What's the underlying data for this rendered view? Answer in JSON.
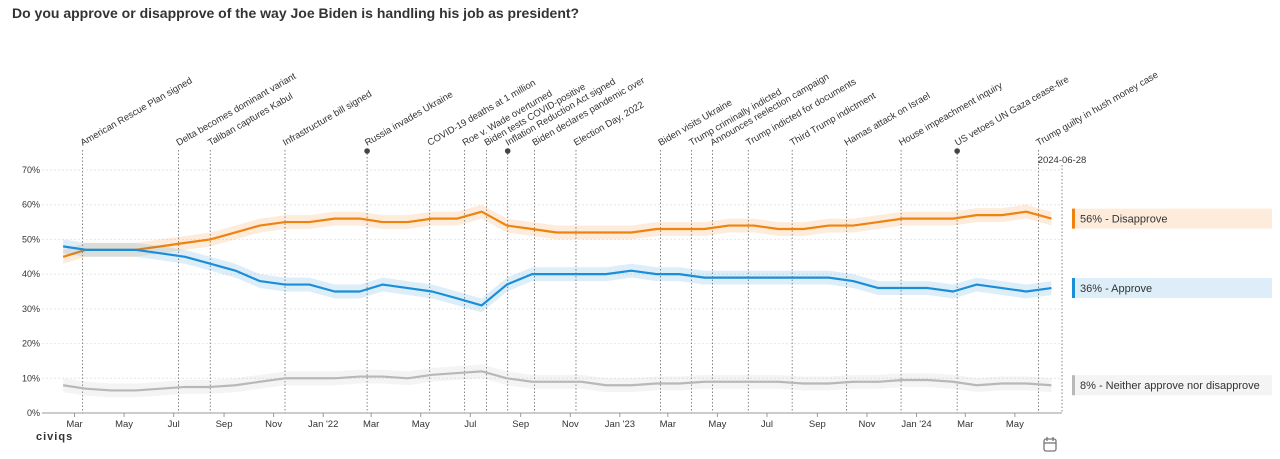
{
  "chart_data": {
    "type": "line",
    "title": "Do you approve or disapprove of the way Joe Biden is handling his job as president?",
    "logo": "civiqs",
    "x": [
      "2021-02",
      "2021-03",
      "2021-04",
      "2021-05",
      "2021-06",
      "2021-07",
      "2021-08",
      "2021-09",
      "2021-10",
      "2021-11",
      "2021-12",
      "2022-01",
      "2022-02",
      "2022-03",
      "2022-04",
      "2022-05",
      "2022-06",
      "2022-07",
      "2022-08",
      "2022-09",
      "2022-10",
      "2022-11",
      "2022-12",
      "2023-01",
      "2023-02",
      "2023-03",
      "2023-04",
      "2023-05",
      "2023-06",
      "2023-07",
      "2023-08",
      "2023-09",
      "2023-10",
      "2023-11",
      "2023-12",
      "2024-01",
      "2024-02",
      "2024-03",
      "2024-04",
      "2024-05",
      "2024-06"
    ],
    "series": [
      {
        "name": "Disapprove",
        "end_label": "56% - Disapprove",
        "color": "#f0820f",
        "values": [
          45,
          47,
          47,
          47,
          48,
          49,
          50,
          52,
          54,
          55,
          55,
          56,
          56,
          55,
          55,
          56,
          56,
          58,
          54,
          53,
          52,
          52,
          52,
          52,
          53,
          53,
          53,
          54,
          54,
          53,
          53,
          54,
          54,
          55,
          56,
          56,
          56,
          57,
          57,
          58,
          56
        ]
      },
      {
        "name": "Approve",
        "end_label": "36% - Approve",
        "color": "#1b8ed8",
        "values": [
          48,
          47,
          47,
          47,
          46,
          45,
          43,
          41,
          38,
          37,
          37,
          35,
          35,
          37,
          36,
          35,
          33,
          31,
          37,
          40,
          40,
          40,
          40,
          41,
          40,
          40,
          39,
          39,
          39,
          39,
          39,
          39,
          38,
          36,
          36,
          36,
          35,
          37,
          36,
          35,
          36
        ]
      },
      {
        "name": "Neither approve nor disapprove",
        "end_label": "8% - Neither approve nor disapprove",
        "color": "#b8b8b8",
        "values": [
          8,
          7,
          6.5,
          6.5,
          7,
          7.5,
          7.5,
          8,
          9,
          10,
          10,
          10,
          10.5,
          10.5,
          10,
          11,
          11.5,
          12,
          10,
          9,
          9,
          9,
          8,
          8,
          8.5,
          8.5,
          9,
          9,
          9,
          9,
          8.5,
          8.5,
          9,
          9,
          9.5,
          9.5,
          9,
          8,
          8.5,
          8.5,
          8
        ]
      }
    ],
    "band": 2,
    "xlim": [
      "2021-01-20",
      "2024-06-28"
    ],
    "end_date_label": "2024-06-28",
    "xticks": [
      {
        "value": "2021-03",
        "label": "Mar"
      },
      {
        "value": "2021-05",
        "label": "May"
      },
      {
        "value": "2021-07",
        "label": "Jul"
      },
      {
        "value": "2021-09",
        "label": "Sep"
      },
      {
        "value": "2021-11",
        "label": "Nov"
      },
      {
        "value": "2022-01",
        "label": "Jan '22"
      },
      {
        "value": "2022-03",
        "label": "Mar"
      },
      {
        "value": "2022-05",
        "label": "May"
      },
      {
        "value": "2022-07",
        "label": "Jul"
      },
      {
        "value": "2022-09",
        "label": "Sep"
      },
      {
        "value": "2022-11",
        "label": "Nov"
      },
      {
        "value": "2023-01",
        "label": "Jan '23"
      },
      {
        "value": "2023-03",
        "label": "Mar"
      },
      {
        "value": "2023-05",
        "label": "May"
      },
      {
        "value": "2023-07",
        "label": "Jul"
      },
      {
        "value": "2023-09",
        "label": "Sep"
      },
      {
        "value": "2023-11",
        "label": "Nov"
      },
      {
        "value": "2024-01",
        "label": "Jan '24"
      },
      {
        "value": "2024-03",
        "label": "Mar"
      },
      {
        "value": "2024-05",
        "label": "May"
      }
    ],
    "ylim": [
      0,
      70
    ],
    "yticks": [
      {
        "value": 0,
        "label": "0%"
      },
      {
        "value": 10,
        "label": "10%"
      },
      {
        "value": 20,
        "label": "20%"
      },
      {
        "value": 30,
        "label": "30%"
      },
      {
        "value": 40,
        "label": "40%"
      },
      {
        "value": 50,
        "label": "50%"
      },
      {
        "value": 60,
        "label": "60%"
      },
      {
        "value": 70,
        "label": "70%"
      }
    ],
    "grid": true,
    "annotations": [
      {
        "label": "American Rescue Plan signed",
        "date": "2021-03-11"
      },
      {
        "label": "Delta becomes dominant variant",
        "date": "2021-07-07"
      },
      {
        "label": "Taliban captures Kabul",
        "date": "2021-08-15"
      },
      {
        "label": "Infrastructure bill signed",
        "date": "2021-11-15"
      },
      {
        "label": "Russia invades Ukraine",
        "date": "2022-02-24",
        "dot": true
      },
      {
        "label": "COVID-19 deaths at 1 million",
        "date": "2022-05-12"
      },
      {
        "label": "Roe v. Wade overturned",
        "date": "2022-06-24"
      },
      {
        "label": "Biden tests COVID-positive",
        "date": "2022-07-21"
      },
      {
        "label": "Inflation Reduction Act signed",
        "date": "2022-08-16",
        "dot": true
      },
      {
        "label": "Biden declares pandemic over",
        "date": "2022-09-18"
      },
      {
        "label": "Election Day, 2022",
        "date": "2022-11-08"
      },
      {
        "label": "Biden visits Ukraine",
        "date": "2023-02-20"
      },
      {
        "label": "Trump criminally indicted",
        "date": "2023-03-30"
      },
      {
        "label": "Announces reelection campaign",
        "date": "2023-04-25"
      },
      {
        "label": "Trump indicted for documents",
        "date": "2023-06-08"
      },
      {
        "label": "Third Trump indictment",
        "date": "2023-08-01"
      },
      {
        "label": "Hamas attack on Israel",
        "date": "2023-10-07"
      },
      {
        "label": "House impeachment inquiry",
        "date": "2023-12-13"
      },
      {
        "label": "US vetoes UN Gaza cease-fire",
        "date": "2024-02-20",
        "dot": true
      },
      {
        "label": "Trump guilty in hush money case",
        "date": "2024-05-30"
      }
    ]
  }
}
